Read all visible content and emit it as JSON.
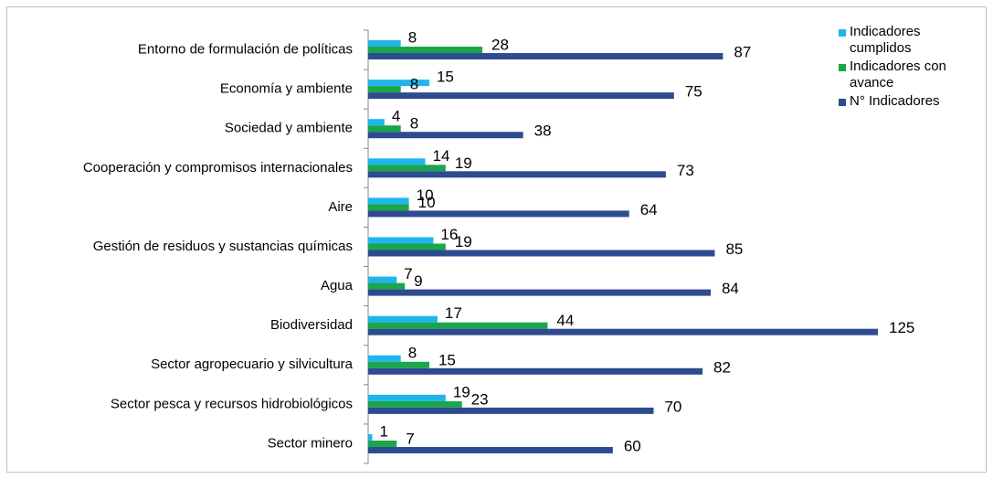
{
  "chart_data": {
    "type": "barh",
    "categories": [
      "Entorno de formulación de políticas",
      "Economía y ambiente",
      "Sociedad y ambiente",
      "Cooperación y compromisos internacionales",
      "Aire",
      "Gestión de residuos y sustancias químicas",
      "Agua",
      "Biodiversidad",
      "Sector agropecuario y silvicultura",
      "Sector pesca y recursos hidrobiológicos",
      "Sector minero"
    ],
    "series": [
      {
        "name": "Indicadores cumplidos",
        "color": "#1fb5ec",
        "values": [
          8,
          15,
          4,
          14,
          10,
          16,
          7,
          17,
          8,
          19,
          1
        ]
      },
      {
        "name": "Indicadores con avance",
        "color": "#1aa64a",
        "values": [
          28,
          8,
          8,
          19,
          10,
          19,
          9,
          44,
          15,
          23,
          7
        ]
      },
      {
        "name": "N° Indicadores",
        "color": "#2e4b8f",
        "values": [
          87,
          75,
          38,
          73,
          64,
          85,
          84,
          125,
          82,
          70,
          60
        ]
      }
    ],
    "xlim": [
      0,
      125
    ],
    "legend": "right"
  }
}
